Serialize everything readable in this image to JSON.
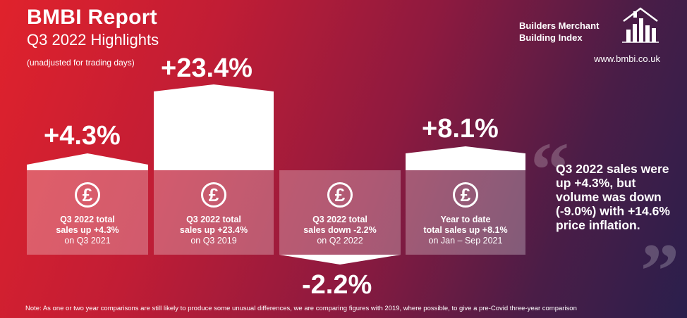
{
  "header": {
    "title": "BMBI Report",
    "subtitle": "Q3 2022 Highlights",
    "note": "(unadjusted for trading days)"
  },
  "logo": {
    "line1": "Builders Merchant",
    "line2": "Building Index",
    "url": "www.bmbi.co.uk"
  },
  "stats": [
    {
      "value": "+4.3%",
      "line1": "Q3 2022 total",
      "line2": "sales up +4.3%",
      "line3": "on Q3 2021",
      "symbol": "£"
    },
    {
      "value": "+23.4%",
      "line1": "Q3 2022 total",
      "line2": "sales up +23.4%",
      "line3": "on Q3 2019",
      "symbol": "£"
    },
    {
      "value": "-2.2%",
      "line1": "Q3 2022 total",
      "line2": "sales down -2.2%",
      "line3": "on Q2 2022",
      "symbol": "£"
    },
    {
      "value": "+8.1%",
      "line1": "Year to date",
      "line2": "total sales up +8.1%",
      "line3": "on Jan – Sep 2021",
      "symbol": "£"
    }
  ],
  "quote": {
    "text": "Q3 2022 sales were up +4.3%, but volume was down (-9.0%) with +14.6% price inflation."
  },
  "footer": {
    "note": "Note: As one or two year comparisons are still likely to produce some unusual differences, we are comparing figures with 2019, where possible, to give a pre-Covid three-year comparison"
  }
}
